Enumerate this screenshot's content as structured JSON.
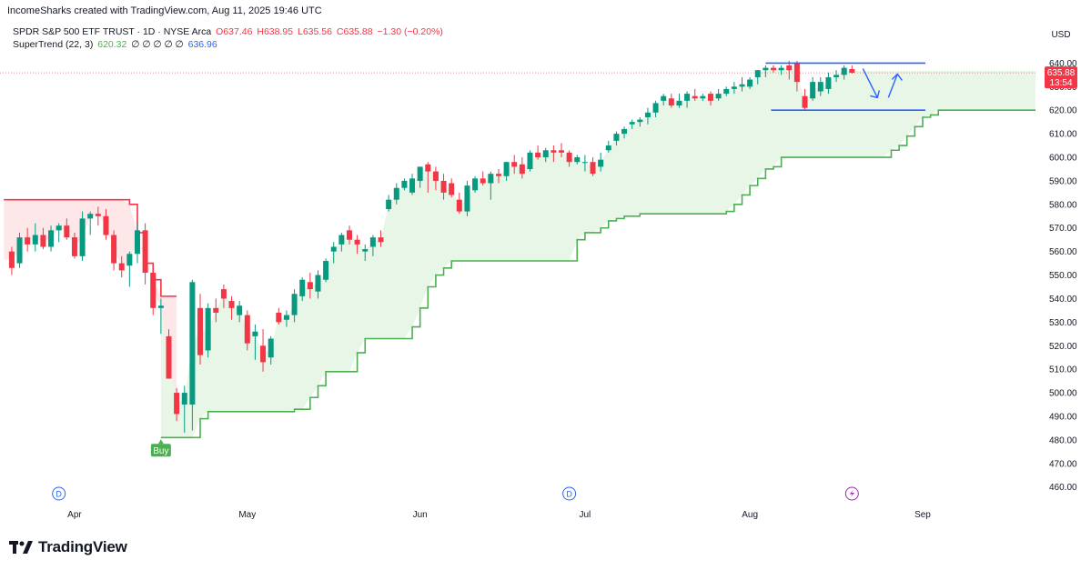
{
  "header": {
    "credit": "IncomeSharks created with TradingView.com, Aug 11, 2025 19:46 UTC"
  },
  "legend": {
    "symbol": "SPDR S&P 500 ETF TRUST · 1D · NYSE Arca",
    "open": "O637.46",
    "high": "H638.95",
    "low": "L635.56",
    "close": "C635.88",
    "change": "−1.30 (−0.20%)",
    "indicator": "SuperTrend (22, 3)",
    "indicator_value": "620.32",
    "indicator_placeholders": "∅ ∅ ∅ ∅ ∅",
    "indicator_value2": "636.96"
  },
  "price_axis": {
    "currency": "USD",
    "last_price": "635.88",
    "countdown": "13:54"
  },
  "brand": {
    "name": "TradingView"
  },
  "colors": {
    "up": "#089981",
    "down": "#f23645",
    "supertrend_up": "#4caf50",
    "supertrend_down": "#f23645",
    "annotation": "#2962ff"
  },
  "chart_data": {
    "type": "candlestick",
    "title": "SPDR S&P 500 ETF TRUST · 1D · NYSE Arca",
    "ylim": [
      455,
      645
    ],
    "yticks": [
      460,
      470,
      480,
      490,
      500,
      510,
      520,
      530,
      540,
      550,
      560,
      570,
      580,
      590,
      600,
      610,
      620,
      630,
      640
    ],
    "x_labels": [
      {
        "label": "Apr",
        "index": 8
      },
      {
        "label": "May",
        "index": 30
      },
      {
        "label": "Jun",
        "index": 52
      },
      {
        "label": "Jul",
        "index": 73
      },
      {
        "label": "Aug",
        "index": 94
      },
      {
        "label": "Sep",
        "index": 116
      }
    ],
    "dividend_markers": [
      {
        "label": "D",
        "index": 6
      },
      {
        "label": "D",
        "index": 71
      }
    ],
    "earnings_marker": {
      "index": 107
    },
    "buy_signal": {
      "label": "Buy",
      "index": 19,
      "price": 481
    },
    "candles": [
      [
        560,
        562,
        550,
        553
      ],
      [
        555,
        568,
        553,
        566
      ],
      [
        566,
        570,
        560,
        563
      ],
      [
        563,
        572,
        560,
        567
      ],
      [
        567,
        570,
        561,
        562
      ],
      [
        562,
        571,
        560,
        569
      ],
      [
        569,
        572,
        564,
        571
      ],
      [
        571,
        574,
        565,
        566
      ],
      [
        566,
        568,
        557,
        558
      ],
      [
        558,
        577,
        556,
        574
      ],
      [
        574,
        577,
        567,
        576
      ],
      [
        576,
        579,
        571,
        575
      ],
      [
        575,
        578,
        565,
        567
      ],
      [
        567,
        569,
        552,
        555
      ],
      [
        555,
        558,
        549,
        552
      ],
      [
        554,
        560,
        545,
        559
      ],
      [
        559,
        572,
        555,
        569
      ],
      [
        569,
        572,
        546,
        551
      ],
      [
        551,
        555,
        533,
        536
      ],
      [
        536,
        540,
        525,
        537
      ],
      [
        524,
        527,
        506,
        506
      ],
      [
        500,
        502,
        488,
        491
      ],
      [
        495,
        503,
        483,
        500
      ],
      [
        495,
        548,
        484,
        547
      ],
      [
        536,
        542,
        512,
        516
      ],
      [
        518,
        538,
        515,
        536
      ],
      [
        536,
        540,
        530,
        534
      ],
      [
        544,
        546,
        536,
        540
      ],
      [
        539,
        541,
        531,
        536
      ],
      [
        533,
        539,
        530,
        537
      ],
      [
        533,
        535,
        518,
        521
      ],
      [
        524,
        529,
        514,
        526
      ],
      [
        520,
        527,
        509,
        513
      ],
      [
        515,
        524,
        512,
        523
      ],
      [
        534,
        536,
        529,
        530
      ],
      [
        531,
        535,
        528,
        533
      ],
      [
        533,
        544,
        530,
        542
      ],
      [
        541,
        549,
        539,
        548
      ],
      [
        547,
        551,
        540,
        544
      ],
      [
        543,
        552,
        540,
        550
      ],
      [
        548,
        557,
        547,
        556
      ],
      [
        560,
        564,
        555,
        562
      ],
      [
        563,
        568,
        560,
        567
      ],
      [
        569,
        571,
        563,
        565
      ],
      [
        565,
        567,
        559,
        563
      ],
      [
        560,
        563,
        556,
        561
      ],
      [
        562,
        567,
        558,
        566
      ],
      [
        566,
        569,
        562,
        564
      ],
      [
        578,
        584,
        577,
        582
      ],
      [
        582,
        589,
        580,
        587
      ],
      [
        587,
        591,
        586,
        590
      ],
      [
        585,
        593,
        584,
        591
      ],
      [
        590,
        596,
        587,
        596
      ],
      [
        597,
        598,
        585,
        594
      ],
      [
        594,
        596,
        586,
        590
      ],
      [
        590,
        593,
        582,
        585
      ],
      [
        589,
        591,
        583,
        584
      ],
      [
        582,
        585,
        576,
        577
      ],
      [
        577,
        590,
        575,
        588
      ],
      [
        586,
        592,
        585,
        591
      ],
      [
        591,
        594,
        588,
        589
      ],
      [
        589,
        594,
        582,
        593
      ],
      [
        593,
        595,
        589,
        592
      ],
      [
        592,
        598,
        590,
        598
      ],
      [
        598,
        601,
        593,
        596
      ],
      [
        597,
        600,
        591,
        593
      ],
      [
        595,
        603,
        594,
        602
      ],
      [
        602,
        605,
        599,
        600
      ],
      [
        600,
        604,
        598,
        603
      ],
      [
        603,
        605,
        598,
        602
      ],
      [
        603,
        606,
        600,
        602
      ],
      [
        602,
        603,
        596,
        598
      ],
      [
        598,
        601,
        597,
        600
      ],
      [
        598,
        601,
        594,
        598
      ],
      [
        598,
        600,
        592,
        593
      ],
      [
        596,
        602,
        594,
        599
      ],
      [
        603,
        607,
        602,
        605
      ],
      [
        607,
        611,
        605,
        610
      ],
      [
        610,
        613,
        608,
        612
      ],
      [
        614,
        616,
        612,
        615
      ],
      [
        615,
        617,
        613,
        616
      ],
      [
        617,
        621,
        614,
        619
      ],
      [
        619,
        624,
        617,
        623
      ],
      [
        624,
        627,
        622,
        626
      ],
      [
        625,
        627,
        621,
        622
      ],
      [
        622,
        627,
        621,
        624
      ],
      [
        624,
        628,
        621,
        627
      ],
      [
        626,
        629,
        624,
        625
      ],
      [
        625,
        627,
        624,
        626
      ],
      [
        627,
        628,
        622,
        624
      ],
      [
        625,
        629,
        624,
        627
      ],
      [
        627,
        630,
        626,
        629
      ],
      [
        629,
        632,
        627,
        630
      ],
      [
        630,
        634,
        628,
        631
      ],
      [
        630,
        634,
        629,
        633
      ],
      [
        634,
        637,
        631,
        637
      ],
      [
        637,
        639,
        634,
        638
      ],
      [
        638,
        639,
        636,
        637
      ],
      [
        637,
        639,
        635,
        638
      ],
      [
        639,
        641,
        633,
        637
      ],
      [
        640,
        641,
        628,
        632
      ],
      [
        626,
        629,
        620,
        621
      ],
      [
        625,
        634,
        624,
        632
      ],
      [
        628,
        634,
        626,
        632
      ],
      [
        629,
        636,
        627,
        634
      ],
      [
        634,
        637,
        632,
        635
      ],
      [
        635,
        639,
        633,
        638
      ],
      [
        637.46,
        638.95,
        635.56,
        635.88
      ]
    ],
    "supertrend": {
      "direction_switch_index": 23,
      "down_values": [
        582,
        582,
        582,
        582,
        582,
        582,
        582,
        582,
        582,
        582,
        582,
        582,
        582,
        582,
        582,
        582,
        580,
        568,
        555,
        548,
        541,
        541,
        541
      ],
      "up_values": [
        481,
        481,
        481,
        481,
        481,
        489,
        492,
        492,
        492,
        492,
        492,
        492,
        492,
        492,
        492,
        492,
        492,
        493,
        493,
        498,
        503,
        509,
        509,
        509,
        509,
        517,
        523,
        523,
        523,
        523,
        523,
        523,
        528,
        536,
        545,
        550,
        553,
        556,
        556,
        556,
        556,
        556,
        556,
        556,
        556,
        556,
        556,
        556,
        556,
        556,
        556,
        556,
        556,
        565,
        568,
        568,
        570,
        573,
        574,
        575,
        575,
        576,
        576,
        576,
        576,
        576,
        576,
        576,
        576,
        576,
        576,
        576,
        577,
        580,
        584,
        588,
        591,
        595,
        596,
        600,
        600,
        600,
        600,
        600,
        600,
        600,
        600,
        600,
        600,
        600,
        600,
        600,
        600,
        603,
        605,
        609,
        613,
        617,
        618,
        620,
        620,
        620,
        620,
        620,
        620,
        620,
        620,
        620,
        620,
        620,
        620,
        620,
        620,
        620
      ]
    },
    "annotations": {
      "channel_upper": 640,
      "channel_lower": 620,
      "channel_start_index": 96,
      "channel_end_index": 116,
      "arrow_down": "projected dip toward 620 support",
      "arrow_up": "projected rebound toward 640 resistance"
    }
  }
}
